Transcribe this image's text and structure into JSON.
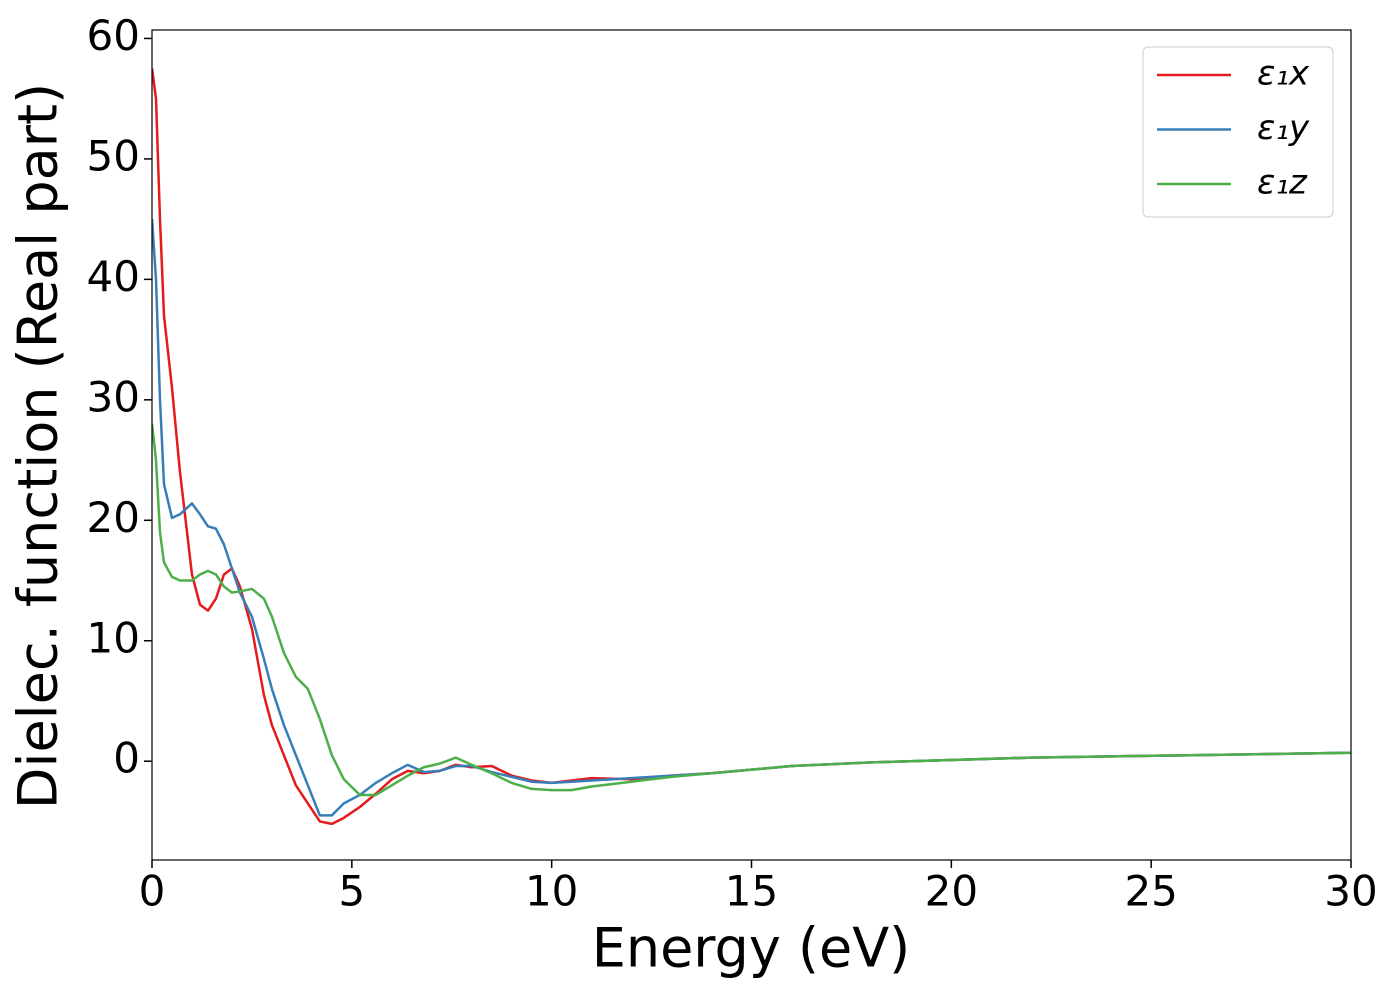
{
  "chart_data": {
    "type": "line",
    "xlabel": "Energy (eV)",
    "ylabel": "Dielec. function (Real part)",
    "x": [
      0,
      0.1,
      0.2,
      0.3,
      0.5,
      0.7,
      1.0,
      1.2,
      1.4,
      1.6,
      1.8,
      2.0,
      2.2,
      2.5,
      2.8,
      3.0,
      3.3,
      3.6,
      3.9,
      4.2,
      4.5,
      4.8,
      5.2,
      5.6,
      6.0,
      6.4,
      6.8,
      7.2,
      7.6,
      8.0,
      8.5,
      9.0,
      9.5,
      10.0,
      10.5,
      11.0,
      12.0,
      13.0,
      14.0,
      15.0,
      16.0,
      18.0,
      20.0,
      22.0,
      24.0,
      26.0,
      28.0,
      30.0
    ],
    "series": [
      {
        "name": "ε₁x",
        "color": "#e41a1c",
        "values": [
          57.5,
          55,
          45,
          37,
          31,
          24,
          15.5,
          13,
          12.5,
          13.5,
          15.5,
          16,
          14.5,
          11,
          5.5,
          3,
          0.5,
          -2,
          -3.5,
          -5,
          -5.2,
          -4.7,
          -3.8,
          -2.7,
          -1.5,
          -0.8,
          -1,
          -0.8,
          -0.3,
          -0.5,
          -0.4,
          -1.2,
          -1.6,
          -1.8,
          -1.6,
          -1.4,
          -1.5,
          -1.2,
          -1.0,
          -0.7,
          -0.4,
          -0.1,
          0.1,
          0.3,
          0.4,
          0.5,
          0.6,
          0.7
        ]
      },
      {
        "name": "ε₁y",
        "color": "#377eb8",
        "values": [
          45,
          40,
          30,
          23,
          20.2,
          20.5,
          21.4,
          20.5,
          19.5,
          19.3,
          18,
          16,
          14,
          12,
          8.5,
          6,
          3,
          0.5,
          -2,
          -4.5,
          -4.5,
          -3.5,
          -2.8,
          -1.8,
          -1.0,
          -0.3,
          -0.9,
          -0.8,
          -0.4,
          -0.4,
          -0.9,
          -1.3,
          -1.7,
          -1.8,
          -1.7,
          -1.6,
          -1.4,
          -1.2,
          -1.0,
          -0.7,
          -0.4,
          -0.1,
          0.1,
          0.3,
          0.4,
          0.5,
          0.6,
          0.7
        ]
      },
      {
        "name": "ε₁z",
        "color": "#4daf4a",
        "values": [
          28,
          25,
          19,
          16.5,
          15.3,
          15,
          15,
          15.5,
          15.8,
          15.5,
          14.5,
          14,
          14.1,
          14.3,
          13.5,
          12,
          9,
          7,
          6,
          3.5,
          0.5,
          -1.5,
          -2.8,
          -2.8,
          -2,
          -1.2,
          -0.5,
          -0.2,
          0.3,
          -0.3,
          -1.0,
          -1.8,
          -2.3,
          -2.4,
          -2.4,
          -2.1,
          -1.7,
          -1.3,
          -1.0,
          -0.7,
          -0.4,
          -0.1,
          0.1,
          0.3,
          0.4,
          0.5,
          0.6,
          0.7
        ]
      }
    ],
    "xlim": [
      0,
      30
    ],
    "xticks": [
      0,
      5,
      10,
      15,
      20,
      25,
      30
    ],
    "ylim": [
      -8.2,
      60.7
    ],
    "yticks": [
      0,
      10,
      20,
      30,
      40,
      50,
      60
    ],
    "grid": false,
    "legend": "upper right"
  }
}
